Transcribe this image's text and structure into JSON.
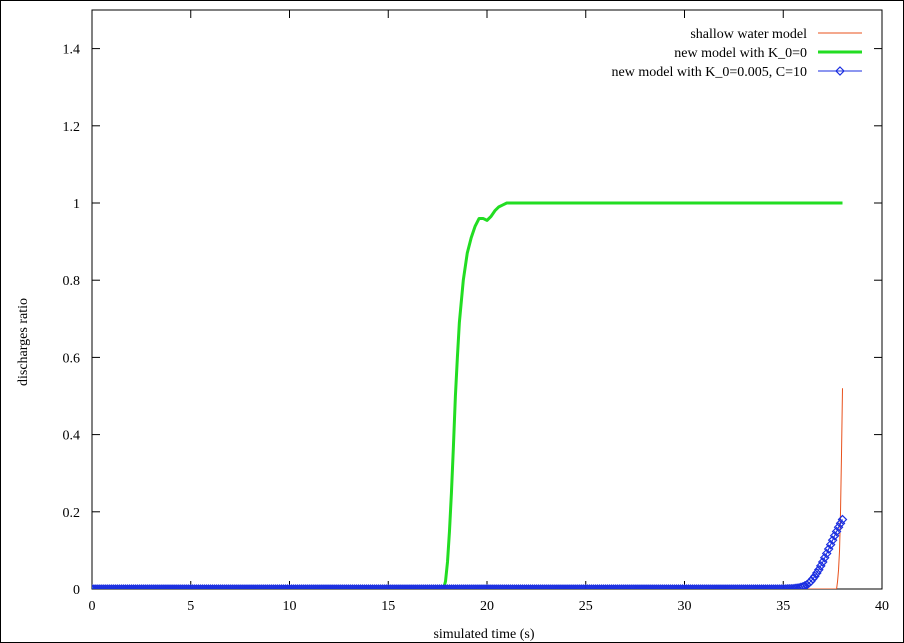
{
  "chart_data": {
    "type": "line",
    "title": "",
    "xlabel": "simulated time (s)",
    "ylabel": "discharges ratio",
    "xlim": [
      0,
      40
    ],
    "ylim": [
      0,
      1.5
    ],
    "xticks": [
      0,
      5,
      10,
      15,
      20,
      25,
      30,
      35,
      40
    ],
    "yticks": [
      0,
      0.2,
      0.4,
      0.6,
      0.8,
      1,
      1.2,
      1.4
    ],
    "grid": false,
    "legend_position": "top-right",
    "series": [
      {
        "name": "shallow water model",
        "color": "#e8501b",
        "style": "thin-line",
        "x": [
          0,
          5,
          10,
          15,
          20,
          25,
          30,
          35,
          37.5,
          37.7,
          37.75,
          37.8,
          37.85,
          37.9,
          37.95,
          38.0
        ],
        "y": [
          0,
          0,
          0,
          0,
          0,
          0,
          0,
          0,
          0,
          0,
          0.02,
          0.05,
          0.1,
          0.2,
          0.35,
          0.52
        ]
      },
      {
        "name": "new model with K_0=0",
        "color": "#22dd22",
        "style": "thick-line",
        "x": [
          0,
          17.8,
          17.9,
          18.0,
          18.1,
          18.2,
          18.3,
          18.4,
          18.5,
          18.6,
          18.8,
          19.0,
          19.2,
          19.4,
          19.6,
          19.8,
          20.0,
          20.2,
          20.4,
          20.6,
          20.8,
          21.0,
          21.5,
          22.0,
          25,
          30,
          35,
          38.0
        ],
        "y": [
          0,
          0,
          0.02,
          0.07,
          0.15,
          0.25,
          0.37,
          0.5,
          0.6,
          0.69,
          0.8,
          0.87,
          0.91,
          0.94,
          0.96,
          0.96,
          0.955,
          0.965,
          0.98,
          0.99,
          0.995,
          1.0,
          1.0,
          1.0,
          1.0,
          1.0,
          1.0,
          1.0
        ]
      },
      {
        "name": "new model with K_0=0.005, C=10",
        "color": "#1a2ee0",
        "style": "line-diamonds",
        "x": [
          0,
          5,
          10,
          15,
          20,
          25,
          30,
          35,
          35.5,
          35.8,
          36.0,
          36.2,
          36.4,
          36.6,
          36.8,
          37.0,
          37.2,
          37.4,
          37.6,
          37.8,
          38.0
        ],
        "y": [
          0,
          0,
          0,
          0,
          0,
          0,
          0,
          0,
          0.001,
          0.003,
          0.006,
          0.011,
          0.02,
          0.033,
          0.05,
          0.07,
          0.092,
          0.115,
          0.138,
          0.16,
          0.18
        ]
      }
    ]
  }
}
